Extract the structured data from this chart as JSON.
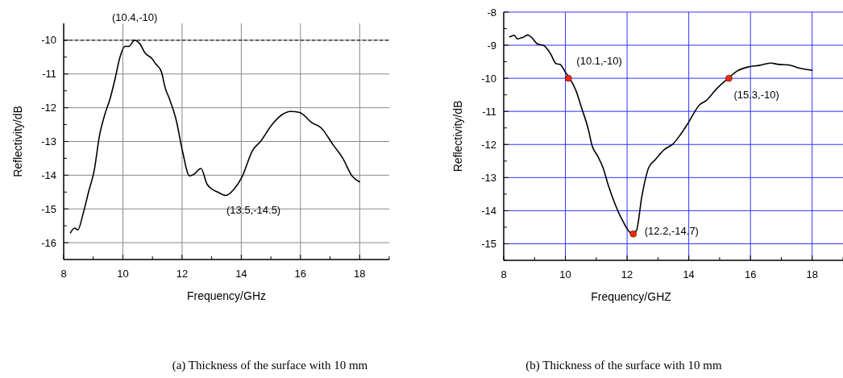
{
  "chart_data": [
    {
      "type": "line",
      "xlabel": "Frequency/GHz",
      "ylabel": "Reflectivity/dB",
      "xlim": [
        8,
        19
      ],
      "ylim": [
        -16.5,
        -9.5
      ],
      "xticks": [
        8,
        {
          "value": 9,
          "label": null
        },
        10,
        {
          "value": 11,
          "label": null
        },
        12,
        {
          "value": 13,
          "label": null
        },
        14,
        {
          "value": 15,
          "label": null
        },
        16,
        {
          "value": 17,
          "label": null
        },
        18,
        {
          "value": 19,
          "label": null
        }
      ],
      "yticks": [
        -16,
        {
          "value": -15.5,
          "label": null
        },
        -15,
        {
          "value": -14.5,
          "label": null
        },
        -14,
        {
          "value": -13.5,
          "label": null
        },
        -13,
        {
          "value": -12.5,
          "label": null
        },
        -12,
        {
          "value": -11.5,
          "label": null
        },
        -11,
        {
          "value": -10.5,
          "label": null
        },
        -10
      ],
      "grid": true,
      "marker": "none",
      "series": [
        {
          "color": "#000000",
          "x": [
            8.23,
            8.37,
            8.48,
            8.66,
            8.84,
            9.03,
            9.21,
            9.39,
            9.57,
            9.75,
            9.89,
            10.07,
            10.21,
            10.39,
            10.57,
            10.75,
            10.98,
            11.11,
            11.3,
            11.43,
            11.57,
            11.8,
            12.02,
            12.25,
            12.39,
            12.64,
            12.84,
            13.02,
            13.2,
            13.48,
            13.75,
            14.02,
            14.38,
            14.66,
            15.02,
            15.39,
            15.66,
            15.97,
            16.38,
            16.7,
            17.11,
            17.43,
            17.74,
            18.0
          ],
          "values": [
            -15.71,
            -15.57,
            -15.62,
            -15.13,
            -14.5,
            -13.87,
            -12.83,
            -12.2,
            -11.73,
            -11.09,
            -10.54,
            -10.18,
            -10.18,
            -10.0,
            -10.1,
            -10.38,
            -10.54,
            -10.7,
            -10.93,
            -11.41,
            -11.73,
            -12.36,
            -13.31,
            -14.02,
            -13.98,
            -13.8,
            -14.26,
            -14.42,
            -14.5,
            -14.6,
            -14.42,
            -14.06,
            -13.27,
            -12.99,
            -12.52,
            -12.2,
            -12.11,
            -12.14,
            -12.44,
            -12.6,
            -13.11,
            -13.5,
            -14.02,
            -14.2
          ]
        }
      ],
      "ref_lines": [
        {
          "axis": "y",
          "value": -10,
          "color": "#000000",
          "line_style": "dashed"
        }
      ],
      "annotations": [
        {
          "text": "(10.4,-10)",
          "x": 10.4,
          "y": -10
        },
        {
          "text": "(13.5,-14.5)",
          "x": 13.5,
          "y": -14.5
        },
        "(a) Thickness of the surface with 10 mm"
      ]
    },
    {
      "type": "line",
      "xlabel": "Frequency/GHZ",
      "ylabel": "Reflectivity/dB",
      "xlim": [
        8,
        19
      ],
      "ylim": [
        -15.5,
        -8
      ],
      "xticks": [
        8,
        {
          "value": 9,
          "label": null
        },
        10,
        {
          "value": 11,
          "label": null
        },
        12,
        {
          "value": 13,
          "label": null
        },
        14,
        {
          "value": 15,
          "label": null
        },
        16,
        {
          "value": 17,
          "label": null
        },
        18,
        {
          "value": 19,
          "label": null
        }
      ],
      "yticks": [
        {
          "value": -15.5,
          "label": null
        },
        -15,
        {
          "value": -14.5,
          "label": null
        },
        -14,
        {
          "value": -13.5,
          "label": null
        },
        -13,
        {
          "value": -12.5,
          "label": null
        },
        -12,
        {
          "value": -11.5,
          "label": null
        },
        -11,
        {
          "value": -10.5,
          "label": null
        },
        -10,
        {
          "value": -9.5,
          "label": null
        },
        -9,
        {
          "value": -8.5,
          "label": null
        },
        -8
      ],
      "grid": true,
      "marker": "none",
      "series": [
        {
          "color": "#000000",
          "x": [
            8.2,
            8.35,
            8.43,
            8.61,
            8.78,
            8.91,
            9.09,
            9.3,
            9.52,
            9.7,
            9.83,
            10.0,
            10.14,
            10.35,
            10.52,
            10.74,
            10.87,
            11.04,
            11.22,
            11.39,
            11.61,
            11.87,
            12.16,
            12.3,
            12.48,
            12.7,
            12.91,
            13.22,
            13.48,
            13.74,
            14.0,
            14.35,
            14.57,
            14.91,
            15.28,
            15.57,
            15.96,
            16.3,
            16.65,
            16.91,
            17.26,
            17.61,
            18.0
          ],
          "values": [
            -8.75,
            -8.7,
            -8.81,
            -8.77,
            -8.69,
            -8.77,
            -8.96,
            -9.01,
            -9.26,
            -9.56,
            -9.58,
            -9.82,
            -10.0,
            -10.39,
            -10.88,
            -11.53,
            -12.05,
            -12.34,
            -12.7,
            -13.23,
            -13.8,
            -14.33,
            -14.69,
            -14.61,
            -13.56,
            -12.7,
            -12.46,
            -12.14,
            -11.99,
            -11.69,
            -11.32,
            -10.8,
            -10.67,
            -10.31,
            -10.0,
            -9.78,
            -9.65,
            -9.61,
            -9.54,
            -9.58,
            -9.6,
            -9.7,
            -9.76
          ]
        },
        {
          "type": "scatter",
          "color": "#ff2a00",
          "marker": "circle",
          "x": [
            10.1,
            12.2,
            15.3
          ],
          "values": [
            -10,
            -14.7,
            -10
          ]
        }
      ],
      "annotations": [
        {
          "text": "(10.1,-10)",
          "x": 10.1,
          "y": -10
        },
        {
          "text": "(12.2,-14.7)",
          "x": 12.2,
          "y": -14.7
        },
        {
          "text": "(15.3,-10)",
          "x": 15.3,
          "y": -10
        },
        "(b) Thickness of the surface with 10 mm"
      ]
    }
  ]
}
